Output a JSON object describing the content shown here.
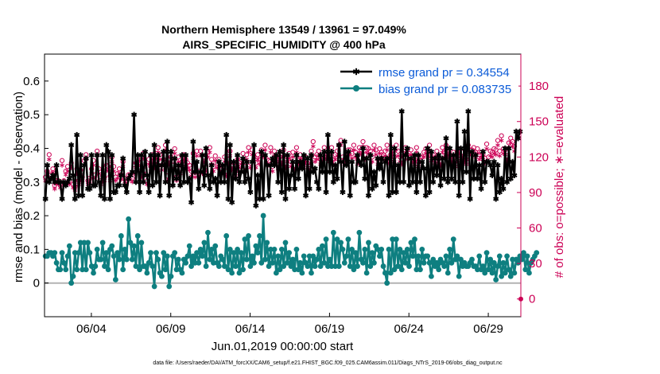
{
  "chart_data": {
    "type": "line",
    "title_line1": "Northern Hemisphere 13549 / 13961 = 97.049%",
    "title_line2": "AIRS_SPECIFIC_HUMIDITY @ 400 hPa",
    "xlabel": "Jun.01,2019 00:00:00 start",
    "ylabel": "rmse and bias (model - observation)",
    "y2label": "# of obs: o=possible; ∗=evaluated",
    "xlim": [
      0.55,
      30.55
    ],
    "ylim": [
      -0.1,
      0.68
    ],
    "y2lim": [
      -15,
      207
    ],
    "x_ticks": [
      3.5,
      8.5,
      13.5,
      18.5,
      23.5,
      28.5
    ],
    "x_tick_labels": [
      "06/04",
      "06/09",
      "06/14",
      "06/19",
      "06/24",
      "06/29"
    ],
    "y_ticks": [
      0,
      0.1,
      0.2,
      0.3,
      0.4,
      0.5,
      0.6
    ],
    "y_tick_labels": [
      "0",
      "0.1",
      "0.2",
      "0.3",
      "0.4",
      "0.5",
      "0.6"
    ],
    "y2_ticks": [
      0,
      30,
      60,
      90,
      120,
      150,
      180
    ],
    "y2_tick_labels": [
      "0",
      "30",
      "60",
      "90",
      "120",
      "150",
      "180"
    ],
    "colors": {
      "rmse": "#000000",
      "bias": "#0e7f80",
      "obs": "#cc0055",
      "legend_text": "#0b5bd8",
      "zero_line": "#b3b3b3"
    },
    "series": [
      {
        "name": "rmse grand pr = 0.34554",
        "values": [
          0.25,
          0.35,
          0.3,
          0.31,
          0.32,
          0.3,
          0.35,
          0.3,
          0.3,
          0.25,
          0.3,
          0.29,
          0.3,
          0.31,
          0.41,
          0.32,
          0.25,
          0.44,
          0.26,
          0.38,
          0.26,
          0.35,
          0.37,
          0.28,
          0.28,
          0.38,
          0.29,
          0.29,
          0.38,
          0.3,
          0.26,
          0.38,
          0.25,
          0.41,
          0.39,
          0.25,
          0.38,
          0.27,
          0.27,
          0.29,
          0.29,
          0.32,
          0.37,
          0.29,
          0.27,
          0.31,
          0.32,
          0.33,
          0.5,
          0.3,
          0.38,
          0.27,
          0.38,
          0.3,
          0.39,
          0.32,
          0.27,
          0.38,
          0.29,
          0.41,
          0.3,
          0.38,
          0.26,
          0.35,
          0.39,
          0.3,
          0.42,
          0.26,
          0.39,
          0.29,
          0.37,
          0.31,
          0.35,
          0.29,
          0.38,
          0.3,
          0.38,
          0.3,
          0.31,
          0.24,
          0.42,
          0.33,
          0.36,
          0.28,
          0.33,
          0.38,
          0.29,
          0.4,
          0.32,
          0.28,
          0.35,
          0.3,
          0.31,
          0.26,
          0.36,
          0.3,
          0.35,
          0.3,
          0.44,
          0.25,
          0.41,
          0.24,
          0.36,
          0.31,
          0.38,
          0.3,
          0.33,
          0.37,
          0.3,
          0.36,
          0.31,
          0.27,
          0.36,
          0.41,
          0.23,
          0.32,
          0.25,
          0.39,
          0.25,
          0.38,
          0.35,
          0.26,
          0.35,
          0.37,
          0.35,
          0.38,
          0.3,
          0.39,
          0.27,
          0.41,
          0.25,
          0.38,
          0.28,
          0.32,
          0.36,
          0.28,
          0.38,
          0.31,
          0.36,
          0.34,
          0.38,
          0.26,
          0.37,
          0.28,
          0.38,
          0.33,
          0.34,
          0.3,
          0.28,
          0.38,
          0.33,
          0.39,
          0.27,
          0.44,
          0.33,
          0.39,
          0.3,
          0.35,
          0.31,
          0.41,
          0.36,
          0.27,
          0.42,
          0.35,
          0.39,
          0.26,
          0.36,
          0.3,
          0.3,
          0.38,
          0.36,
          0.35,
          0.4,
          0.31,
          0.37,
          0.26,
          0.38,
          0.28,
          0.33,
          0.29,
          0.37,
          0.34,
          0.37,
          0.3,
          0.36,
          0.37,
          0.26,
          0.44,
          0.27,
          0.4,
          0.27,
          0.35,
          0.3,
          0.51,
          0.3,
          0.38,
          0.4,
          0.29,
          0.37,
          0.3,
          0.38,
          0.27,
          0.38,
          0.3,
          0.36,
          0.34,
          0.26,
          0.4,
          0.27,
          0.39,
          0.3,
          0.37,
          0.32,
          0.38,
          0.29,
          0.37,
          0.31,
          0.43,
          0.3,
          0.4,
          0.31,
          0.38,
          0.3,
          0.48,
          0.26,
          0.4,
          0.3,
          0.45,
          0.33,
          0.51,
          0.25,
          0.39,
          0.31,
          0.38,
          0.31,
          0.35,
          0.28,
          0.39,
          0.3,
          0.36,
          0.36,
          0.35,
          0.32,
          0.36,
          0.25,
          0.35,
          0.27,
          0.31,
          0.28,
          0.4,
          0.3,
          0.4,
          0.31,
          0.36,
          0.32,
          0.45,
          0.43,
          0.45
        ],
        "color": "#000000",
        "marker": "asterisk"
      },
      {
        "name": "bias grand pr = 0.083735",
        "values": [
          0.08,
          0.08,
          0.09,
          0.09,
          0.08,
          0.09,
          0.06,
          0.04,
          0.04,
          0.09,
          0.06,
          0.04,
          0.08,
          0.11,
          0.0,
          0.02,
          0.09,
          0.04,
          0.09,
          0.12,
          0.04,
          0.12,
          0.04,
          0.12,
          0.09,
          0.05,
          0.03,
          0.05,
          0.1,
          0.07,
          0.07,
          0.12,
          0.05,
          0.09,
          0.04,
          0.1,
          0.11,
          0.08,
          0.01,
          0.09,
          0.07,
          0.14,
          0.04,
          0.1,
          0.07,
          0.19,
          0.12,
          0.07,
          0.11,
          0.05,
          0.14,
          0.04,
          0.12,
          0.05,
          0.05,
          0.03,
          0.06,
          0.09,
          0.05,
          -0.01,
          0.09,
          0.07,
          0.03,
          0.02,
          0.09,
          0.04,
          0.08,
          -0.01,
          0.02,
          0.08,
          0.09,
          0.04,
          0.07,
          0.04,
          0.03,
          0.07,
          0.06,
          0.08,
          0.11,
          0.05,
          0.08,
          0.06,
          0.09,
          0.06,
          0.1,
          0.08,
          0.12,
          0.05,
          0.15,
          0.07,
          0.1,
          0.06,
          0.11,
          0.06,
          0.05,
          0.08,
          0.07,
          0.05,
          0.14,
          0.04,
          0.1,
          0.03,
          0.09,
          0.05,
          0.1,
          0.03,
          0.09,
          0.04,
          0.13,
          0.07,
          0.14,
          0.05,
          0.08,
          0.06,
          0.11,
          0.09,
          0.14,
          0.06,
          0.2,
          0.07,
          0.12,
          0.05,
          0.1,
          0.06,
          0.1,
          0.03,
          0.08,
          0.04,
          0.1,
          0.05,
          0.12,
          0.06,
          0.09,
          0.05,
          0.07,
          0.04,
          0.1,
          0.04,
          0.06,
          0.03,
          0.08,
          0.06,
          0.05,
          0.08,
          0.03,
          0.08,
          0.05,
          0.07,
          0.1,
          0.05,
          0.11,
          0.06,
          0.13,
          0.05,
          0.07,
          0.05,
          0.15,
          0.05,
          0.13,
          0.05,
          0.12,
          0.1,
          0.06,
          0.08,
          0.13,
          0.05,
          0.1,
          0.04,
          0.09,
          0.05,
          0.15,
          0.07,
          0.06,
          0.1,
          0.03,
          0.12,
          0.05,
          0.09,
          0.06,
          0.11,
          0.1,
          0.08,
          0.1,
          0.05,
          0.03,
          0.0,
          0.1,
          0.03,
          0.13,
          0.04,
          0.13,
          0.05,
          0.1,
          0.04,
          0.09,
          0.06,
          0.1,
          0.05,
          0.12,
          0.08,
          0.13,
          0.04,
          0.08,
          0.04,
          0.1,
          0.06,
          0.08,
          0.08,
          0.06,
          0.02,
          0.07,
          0.05,
          0.06,
          0.04,
          0.07,
          0.06,
          0.05,
          0.08,
          0.03,
          0.1,
          0.06,
          0.13,
          0.07,
          0.08,
          0.02,
          0.07,
          0.05,
          0.06,
          0.05,
          0.05,
          0.06,
          0.07,
          0.05,
          0.05,
          0.04,
          0.08,
          0.04,
          0.05,
          0.03,
          0.09,
          0.04,
          0.07,
          0.03,
          0.06,
          0.01,
          0.05,
          0.08,
          0.02,
          0.06,
          0.03,
          0.08,
          0.04,
          0.02,
          0.07,
          0.03,
          0.07,
          0.06,
          0.08,
          0.07,
          0.09,
          0.04,
          0.08,
          0.03,
          0.06,
          0.07,
          0.08,
          0.09
        ],
        "color": "#0e7f80",
        "marker": "circle"
      }
    ],
    "obs_possible": [
      103,
      108,
      122,
      105,
      110,
      96,
      100,
      100,
      97,
      117,
      100,
      108,
      112,
      100,
      115,
      97,
      95,
      110,
      100,
      109,
      103,
      117,
      122,
      100,
      102,
      110,
      117,
      105,
      125,
      110,
      100,
      104,
      103,
      113,
      112,
      104,
      120,
      112,
      103,
      106,
      110,
      105,
      116,
      102,
      100,
      105,
      105,
      102,
      110,
      115,
      113,
      121,
      107,
      123,
      109,
      100,
      118,
      112,
      122,
      115,
      123,
      128,
      122,
      113,
      118,
      130,
      104,
      118,
      120,
      113,
      127,
      103,
      120,
      110,
      116,
      122,
      118,
      115,
      113,
      108,
      123,
      107,
      125,
      108,
      125,
      110,
      120,
      112,
      124,
      128,
      118,
      112,
      121,
      115,
      118,
      110,
      112,
      120,
      108,
      118,
      125,
      113,
      115,
      108,
      118,
      115,
      118,
      123,
      112,
      122,
      128,
      115,
      126,
      120,
      115,
      122,
      118,
      126,
      124,
      130,
      118,
      117,
      128,
      112,
      125,
      118,
      114,
      120,
      118,
      126,
      115,
      120,
      123,
      116,
      124,
      113,
      128,
      118,
      122,
      118,
      118,
      120,
      115,
      112,
      125,
      133,
      120,
      122,
      125,
      118,
      118,
      128,
      123,
      122,
      120,
      128,
      118,
      122,
      125,
      130,
      134,
      120,
      118,
      120,
      126,
      126,
      123,
      130,
      124,
      118,
      128,
      126,
      133,
      122,
      128,
      127,
      125,
      120,
      130,
      126,
      118,
      127,
      124,
      122,
      125,
      130,
      119,
      122,
      128,
      120,
      130,
      125,
      120,
      118,
      125,
      128,
      122,
      123,
      126,
      120,
      118,
      128,
      116,
      120,
      120,
      124,
      127,
      124,
      130,
      121,
      122,
      119,
      125,
      120,
      117,
      128,
      124,
      130,
      126,
      120,
      120,
      124,
      116,
      124,
      127,
      121,
      124,
      120,
      118,
      130,
      126,
      126,
      128,
      124,
      127,
      122,
      124,
      122,
      119,
      131,
      120,
      125,
      124,
      127,
      126,
      134,
      125,
      138,
      127,
      126,
      121,
      132,
      136,
      133,
      129
    ],
    "obs_evaluated": [
      100,
      105,
      118,
      102,
      107,
      93,
      97,
      97,
      94,
      113,
      97,
      105,
      108,
      97,
      111,
      94,
      92,
      106,
      97,
      105,
      100,
      113,
      118,
      97,
      99,
      106,
      113,
      102,
      121,
      106,
      97,
      100,
      100,
      109,
      108,
      100,
      116,
      108,
      100,
      102,
      106,
      101,
      112,
      99,
      97,
      101,
      101,
      99,
      106,
      111,
      109,
      117,
      103,
      119,
      105,
      97,
      114,
      108,
      118,
      111,
      119,
      124,
      118,
      109,
      114,
      126,
      100,
      114,
      116,
      109,
      123,
      100,
      116,
      106,
      112,
      118,
      114,
      111,
      109,
      104,
      119,
      103,
      121,
      104,
      121,
      106,
      116,
      108,
      120,
      124,
      114,
      108,
      117,
      111,
      114,
      106,
      108,
      116,
      104,
      114,
      121,
      109,
      111,
      104,
      114,
      111,
      114,
      119,
      108,
      118,
      124,
      111,
      122,
      116,
      111,
      118,
      114,
      122,
      120,
      126,
      114,
      113,
      124,
      108,
      121,
      114,
      110,
      116,
      114,
      122,
      111,
      116,
      119,
      112,
      120,
      109,
      124,
      114,
      118,
      114,
      114,
      116,
      111,
      108,
      121,
      129,
      116,
      118,
      121,
      114,
      114,
      124,
      119,
      118,
      116,
      124,
      114,
      118,
      121,
      126,
      130,
      116,
      114,
      116,
      122,
      122,
      119,
      126,
      120,
      114,
      124,
      122,
      129,
      118,
      124,
      123,
      121,
      116,
      126,
      122,
      114,
      123,
      120,
      118,
      121,
      126,
      115,
      118,
      124,
      116,
      126,
      121,
      116,
      114,
      121,
      124,
      118,
      119,
      122,
      116,
      114,
      124,
      112,
      116,
      116,
      120,
      123,
      120,
      126,
      117,
      118,
      115,
      121,
      116,
      113,
      124,
      120,
      126,
      122,
      116,
      116,
      120,
      112,
      120,
      123,
      117,
      120,
      116,
      114,
      126,
      122,
      122,
      124,
      120,
      123,
      118,
      120,
      118,
      115,
      127,
      116,
      121,
      120,
      123,
      122,
      130,
      121,
      134,
      123,
      122,
      117,
      128,
      132,
      129,
      125
    ]
  },
  "footnote": "data file: /Users/raeder/DAI/ATM_forcXX/CAM6_setup/f.e21.FHIST_BGC.f09_025.CAM6assim.011/Diags_NTrS_2019-06/obs_diag_output.nc"
}
